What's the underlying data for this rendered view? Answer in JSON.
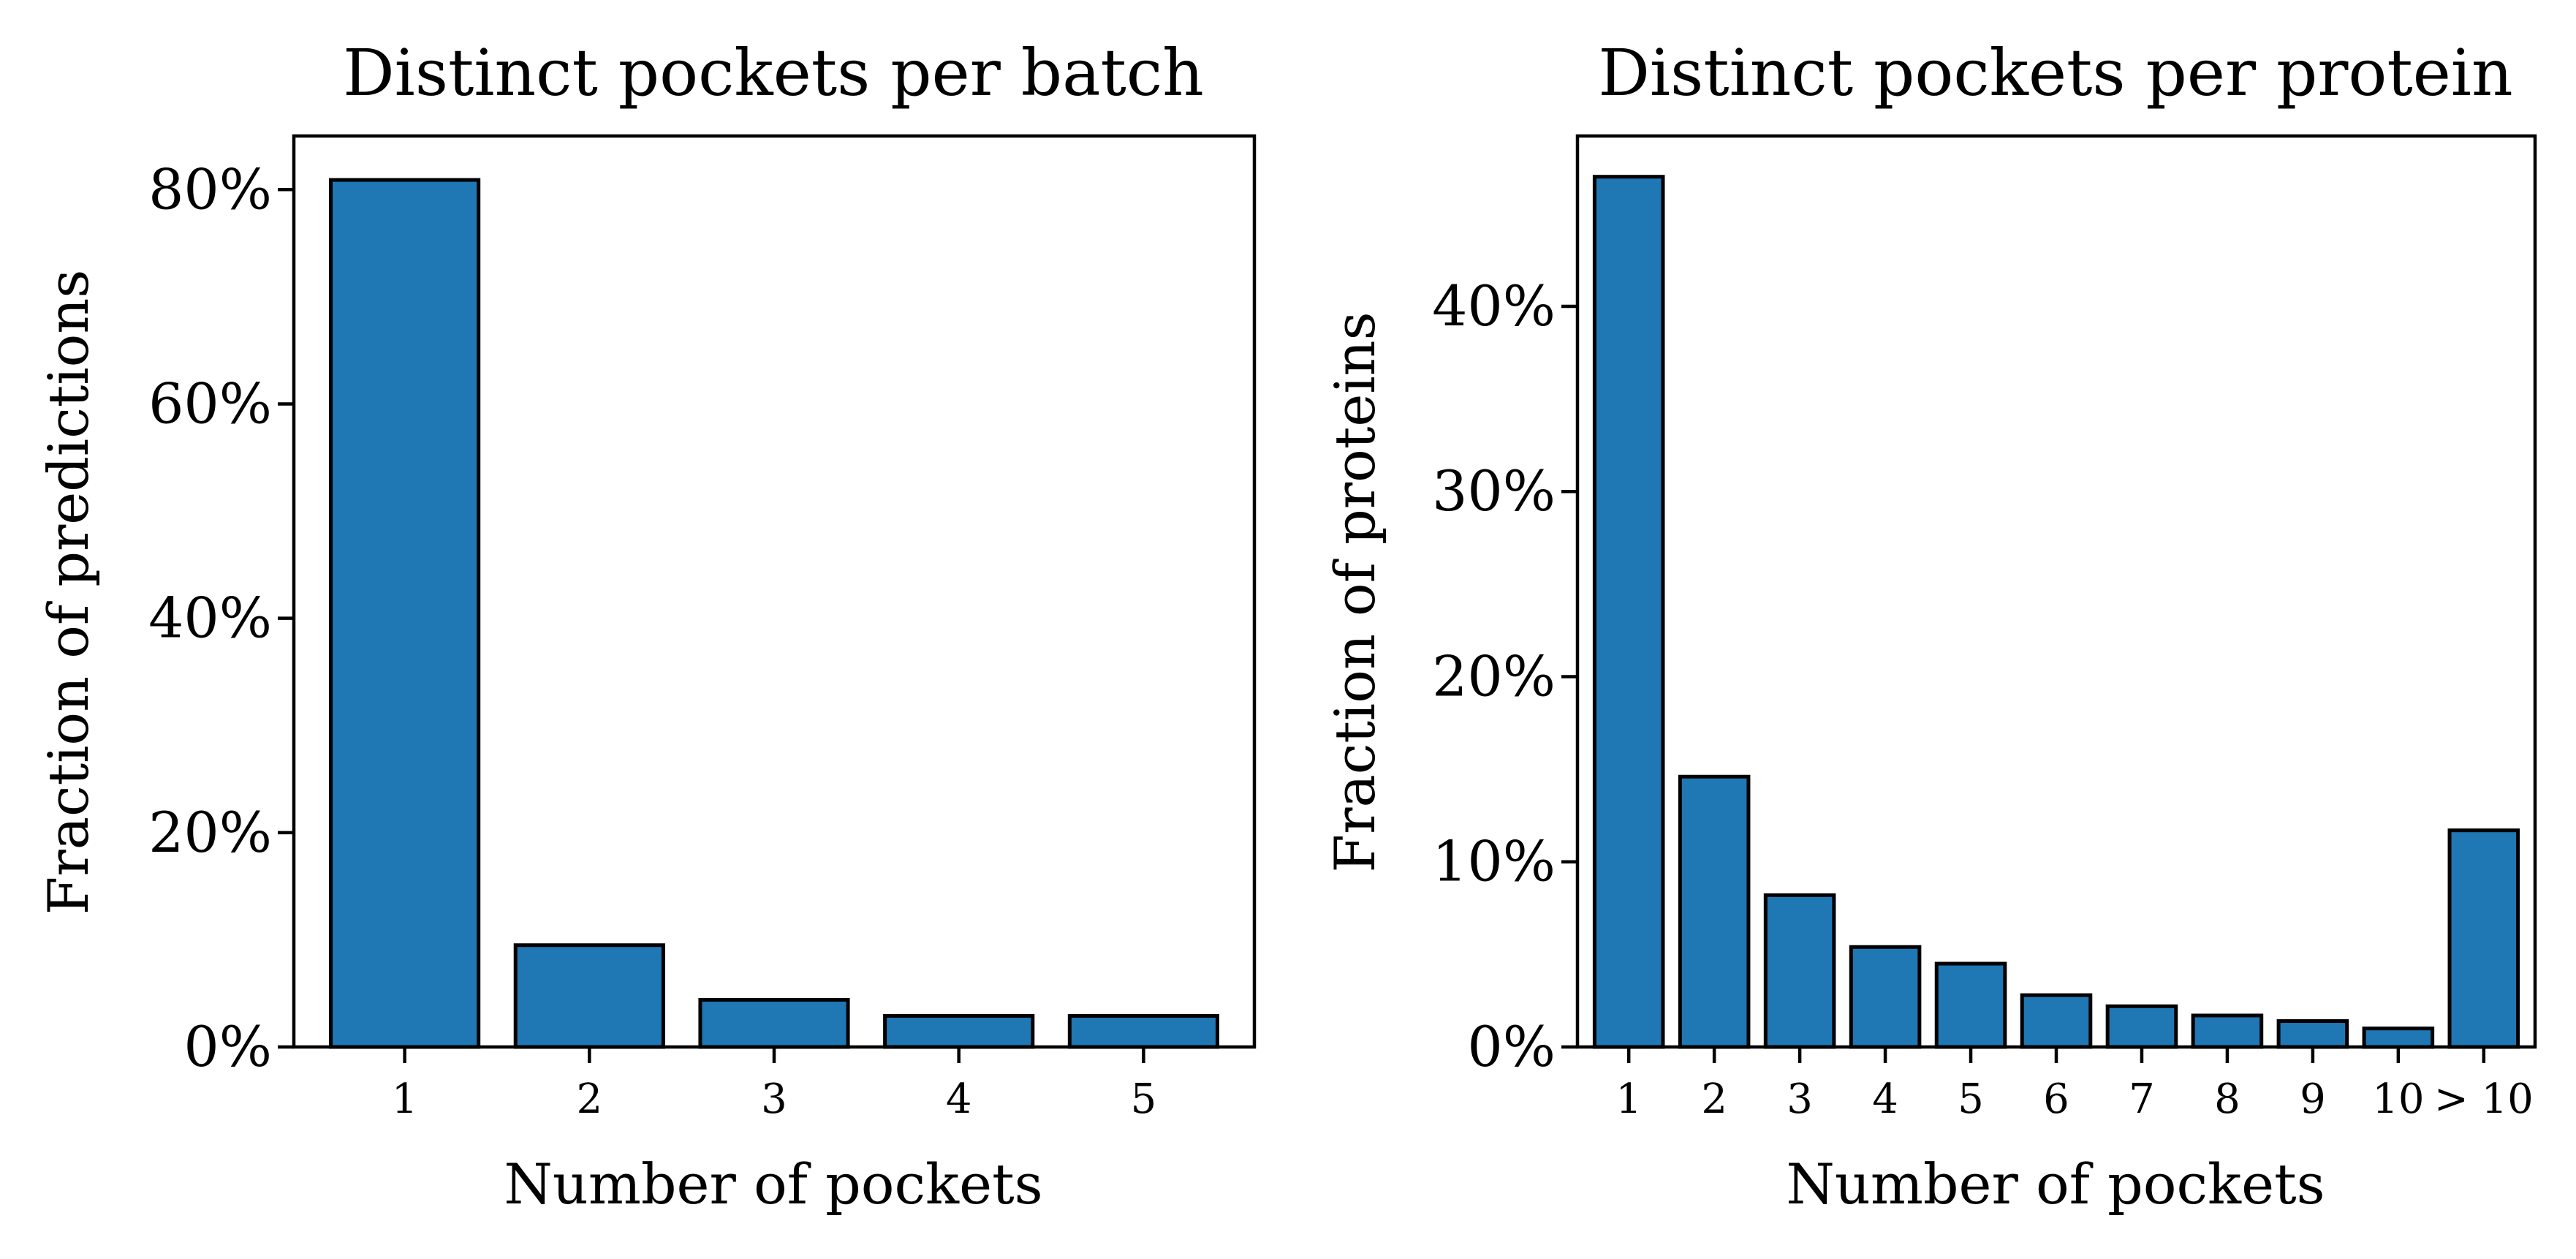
{
  "chart_data": [
    {
      "type": "bar",
      "title": "Distinct pockets per batch",
      "xlabel": "Number of pockets",
      "ylabel": "Fraction of predictions",
      "categories": [
        "1",
        "2",
        "3",
        "4",
        "5"
      ],
      "values": [
        80.9,
        9.5,
        4.4,
        2.9,
        2.9
      ],
      "ylim": [
        0,
        85
      ],
      "yticks": [
        0,
        20,
        40,
        60,
        80
      ],
      "ytick_labels": [
        "0%",
        "20%",
        "40%",
        "60%",
        "80%"
      ],
      "color": "#1f77b4",
      "grid": false
    },
    {
      "type": "bar",
      "title": "Distinct pockets per protein",
      "xlabel": "Number of pockets",
      "ylabel": "Fraction of proteins",
      "categories": [
        "1",
        "2",
        "3",
        "4",
        "5",
        "6",
        "7",
        "8",
        "9",
        "10",
        "> 10"
      ],
      "values": [
        47.0,
        14.6,
        8.2,
        5.4,
        4.5,
        2.8,
        2.2,
        1.7,
        1.4,
        1.0,
        11.7
      ],
      "ylim": [
        0,
        49.2
      ],
      "yticks": [
        0,
        10,
        20,
        30,
        40
      ],
      "ytick_labels": [
        "0%",
        "10%",
        "20%",
        "30%",
        "40%"
      ],
      "color": "#1f77b4",
      "grid": false
    }
  ]
}
